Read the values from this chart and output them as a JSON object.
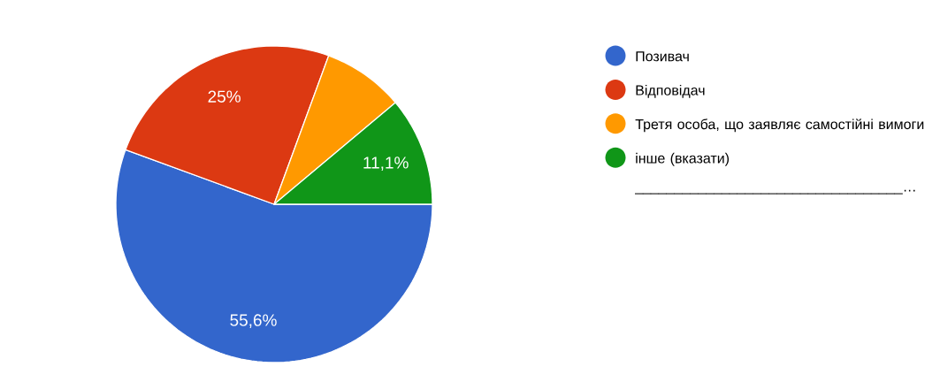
{
  "chart_data": {
    "type": "pie",
    "categories": [
      "Позивач",
      "Відповідач",
      "Третя особа, що заявляє самостійні вимоги",
      "інше (вказати) __________________________________…"
    ],
    "values": [
      55.6,
      25,
      8.3,
      11.1
    ],
    "colors": [
      "#3366cc",
      "#dc3912",
      "#ff9900",
      "#109618"
    ],
    "value_labels": [
      "55,6%",
      "25%",
      null,
      "11,1%"
    ],
    "legend": "right"
  }
}
